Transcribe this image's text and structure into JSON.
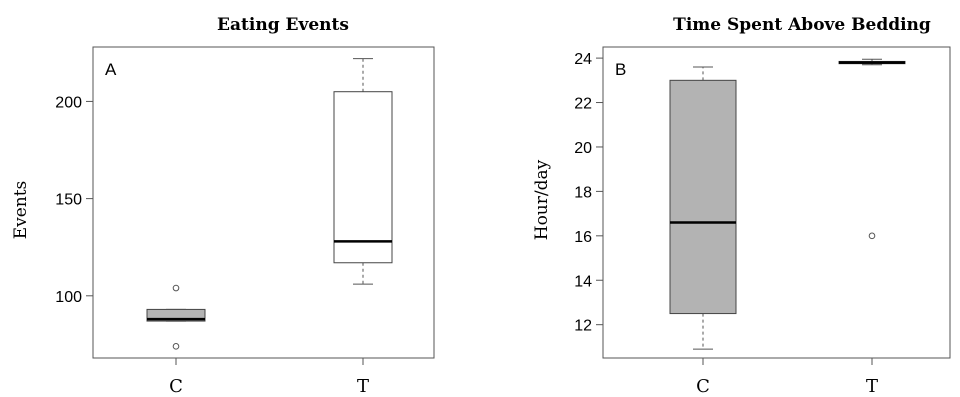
{
  "chart_data": [
    {
      "type": "boxplot",
      "panel_label": "A",
      "title": "Eating Events",
      "xlabel": "",
      "ylabel": "Events",
      "ylim": [
        68,
        228
      ],
      "yticks": [
        100,
        150,
        200
      ],
      "categories": [
        "C",
        "T"
      ],
      "boxes": [
        {
          "category": "C",
          "whisker_low": 87,
          "q1": 87,
          "median": 88,
          "q3": 93,
          "whisker_high": 93,
          "outliers": [
            74,
            104
          ],
          "fill": "#b3b3b3"
        },
        {
          "category": "T",
          "whisker_low": 106,
          "q1": 117,
          "median": 128,
          "q3": 205,
          "whisker_high": 222,
          "outliers": [],
          "fill": "#ffffff"
        }
      ]
    },
    {
      "type": "boxplot",
      "panel_label": "B",
      "title": "Time Spent Above Bedding",
      "xlabel": "",
      "ylabel": "Hour/day",
      "ylim": [
        10.5,
        24.5
      ],
      "yticks": [
        12,
        14,
        16,
        18,
        20,
        22,
        24
      ],
      "categories": [
        "C",
        "T"
      ],
      "boxes": [
        {
          "category": "C",
          "whisker_low": 10.9,
          "q1": 12.5,
          "median": 16.6,
          "q3": 23.0,
          "whisker_high": 23.6,
          "outliers": [],
          "fill": "#b3b3b3"
        },
        {
          "category": "T",
          "whisker_low": 23.7,
          "q1": 23.75,
          "median": 23.8,
          "q3": 23.85,
          "whisker_high": 23.95,
          "outliers": [
            16.0
          ],
          "fill": "#ffffff"
        }
      ]
    }
  ]
}
